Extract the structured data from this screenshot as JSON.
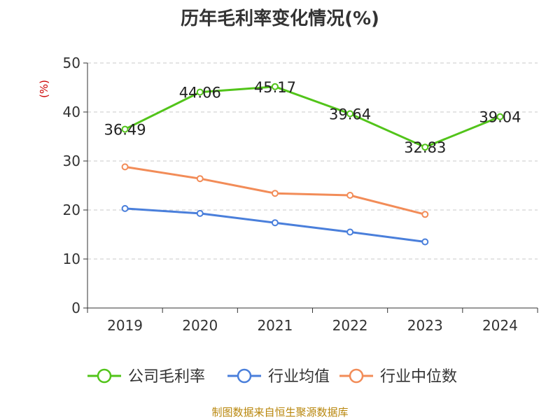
{
  "chart_data": {
    "type": "line",
    "title": "历年毛利率变化情况(%)",
    "ylabel": "(%)",
    "xlabel": "",
    "categories": [
      "2019",
      "2020",
      "2021",
      "2022",
      "2023",
      "2024"
    ],
    "ylim": [
      0,
      50
    ],
    "yticks": [
      0,
      10,
      20,
      30,
      40,
      50
    ],
    "grid": true,
    "legend_position": "bottom",
    "series": [
      {
        "name": "公司毛利率",
        "color": "#52c41a",
        "values": [
          36.49,
          44.06,
          45.17,
          39.64,
          32.83,
          39.04
        ],
        "show_labels": true
      },
      {
        "name": "行业均值",
        "color": "#4a7fdb",
        "values": [
          20.3,
          19.3,
          17.4,
          15.5,
          13.5,
          null
        ],
        "show_labels": false
      },
      {
        "name": "行业中位数",
        "color": "#f28c58",
        "values": [
          28.8,
          26.4,
          23.4,
          23.0,
          19.1,
          null
        ],
        "show_labels": false
      }
    ],
    "source": "制图数据来自恒生聚源数据库"
  }
}
